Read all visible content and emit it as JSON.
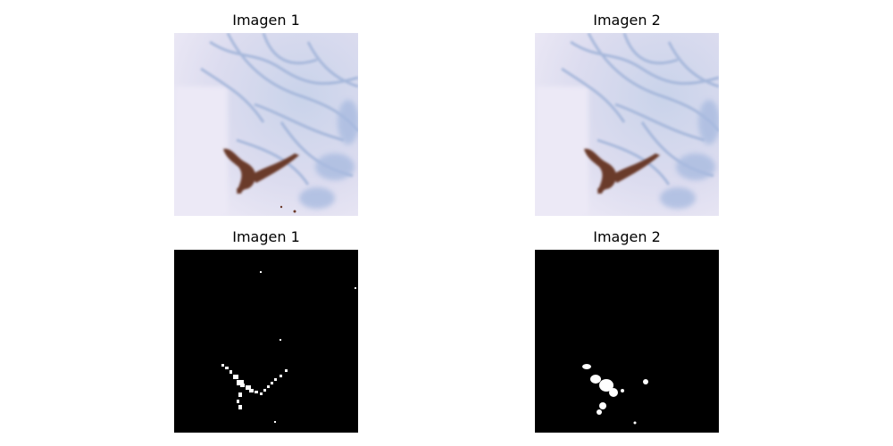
{
  "panels": [
    {
      "title": "Imagen 1",
      "kind": "tissue-photo"
    },
    {
      "title": "Imagen 2",
      "kind": "tissue-photo"
    },
    {
      "title": "Imagen 1",
      "kind": "binary-mask"
    },
    {
      "title": "Imagen 2",
      "kind": "binary-mask"
    }
  ],
  "colors": {
    "background": "#e6e3f2",
    "stroma_blue": "#9fb2d8",
    "stain_brown": "#6b3a2a",
    "mask_bg": "#000000",
    "mask_fg": "#ffffff"
  }
}
